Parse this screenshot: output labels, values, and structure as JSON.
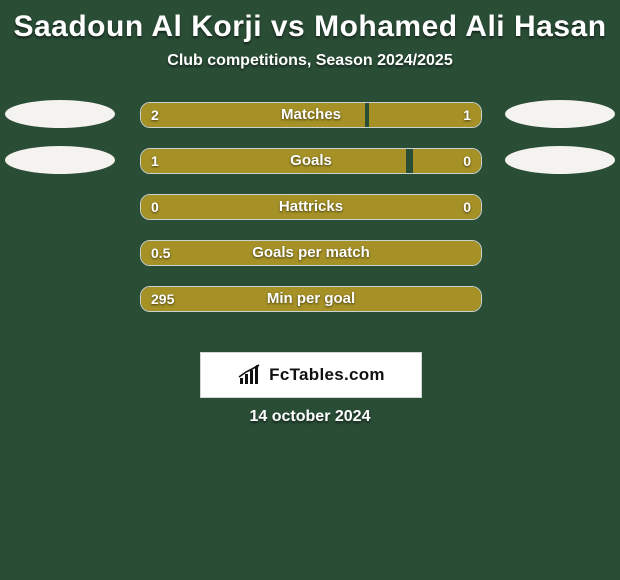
{
  "header": {
    "title": "Saadoun Al Korji vs Mohamed Ali Hasan",
    "title_fontsize": 30,
    "title_color": "#ffffff",
    "subtitle": "Club competitions, Season 2024/2025",
    "subtitle_fontsize": 16,
    "subtitle_color": "#ffffff"
  },
  "background_color": "#2a4d36",
  "player_left": {
    "avatar_bg": "#f5f3ef"
  },
  "player_right": {
    "avatar_bg": "#f5f3ef"
  },
  "bar_style": {
    "track_border_color": "rgba(255,255,255,0.75)",
    "left_color": "#a59126",
    "right_color": "#a59126",
    "label_color": "#ffffff",
    "value_color": "#ffffff",
    "font_weight": 800
  },
  "stats": [
    {
      "label": "Matches",
      "left_value": "2",
      "right_value": "1",
      "left_pct": 66,
      "right_pct": 33,
      "show_left_avatar": true,
      "show_right_avatar": true
    },
    {
      "label": "Goals",
      "left_value": "1",
      "right_value": "0",
      "left_pct": 78,
      "right_pct": 20,
      "show_left_avatar": true,
      "show_right_avatar": true
    },
    {
      "label": "Hattricks",
      "left_value": "0",
      "right_value": "0",
      "left_pct": 100,
      "right_pct": 0,
      "show_left_avatar": false,
      "show_right_avatar": false
    },
    {
      "label": "Goals per match",
      "left_value": "0.5",
      "right_value": "",
      "left_pct": 100,
      "right_pct": 0,
      "show_left_avatar": false,
      "show_right_avatar": false
    },
    {
      "label": "Min per goal",
      "left_value": "295",
      "right_value": "",
      "left_pct": 100,
      "right_pct": 0,
      "show_left_avatar": false,
      "show_right_avatar": false
    }
  ],
  "logo": {
    "text": "FcTables.com",
    "box_bg": "#ffffff",
    "box_border": "#d5d5d5",
    "text_color": "#111111",
    "icon_color": "#111111"
  },
  "footer": {
    "date": "14 october 2024",
    "date_fontsize": 16,
    "date_color": "#ffffff"
  }
}
